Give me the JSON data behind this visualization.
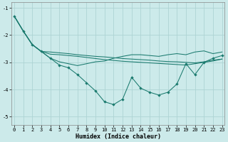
{
  "xlabel": "Humidex (Indice chaleur)",
  "bg_color": "#cceaea",
  "grid_color": "#aed4d4",
  "line_color": "#1a7a6e",
  "x": [
    0,
    1,
    2,
    3,
    4,
    5,
    6,
    7,
    8,
    9,
    10,
    11,
    12,
    13,
    14,
    15,
    16,
    17,
    18,
    19,
    20,
    21,
    22,
    23
  ],
  "line_upper": [
    -1.3,
    -1.85,
    -2.35,
    -2.6,
    -2.62,
    -2.65,
    -2.68,
    -2.72,
    -2.75,
    -2.78,
    -2.8,
    -2.83,
    -2.86,
    -2.88,
    -2.9,
    -2.92,
    -2.95,
    -2.97,
    -2.98,
    -3.0,
    -3.02,
    -2.98,
    -2.92,
    -2.88
  ],
  "line_mid_upper": [
    -1.3,
    -1.85,
    -2.35,
    -2.6,
    -2.7,
    -2.72,
    -2.75,
    -2.78,
    -2.82,
    -2.86,
    -2.9,
    -2.93,
    -2.96,
    -2.98,
    -3.0,
    -3.02,
    -3.04,
    -3.06,
    -3.08,
    -3.1,
    -3.05,
    -3.0,
    -2.95,
    -2.88
  ],
  "line_main": [
    -1.3,
    -1.85,
    -2.35,
    -2.6,
    -2.85,
    -3.1,
    -3.2,
    -3.45,
    -3.75,
    -4.05,
    -4.45,
    -4.55,
    -4.35,
    -3.55,
    -3.95,
    -4.1,
    -4.2,
    -4.1,
    -3.8,
    -3.05,
    -3.45,
    -3.0,
    -2.85,
    -2.75
  ],
  "line_envelope": [
    -1.3,
    -1.85,
    -2.35,
    -2.6,
    -2.85,
    -2.98,
    -3.05,
    -3.12,
    -3.05,
    -2.98,
    -2.95,
    -2.85,
    -2.78,
    -2.72,
    -2.72,
    -2.75,
    -2.78,
    -2.72,
    -2.68,
    -2.72,
    -2.62,
    -2.58,
    -2.68,
    -2.62
  ],
  "ylim": [
    -5.3,
    -0.8
  ],
  "xlim": [
    -0.3,
    23.3
  ],
  "yticks": [
    -5,
    -4,
    -3,
    -2,
    -1
  ],
  "xticks": [
    0,
    1,
    2,
    3,
    4,
    5,
    6,
    7,
    8,
    9,
    10,
    11,
    12,
    13,
    14,
    15,
    16,
    17,
    18,
    19,
    20,
    21,
    22,
    23
  ],
  "tick_fontsize": 5.0,
  "label_fontsize": 6.0
}
